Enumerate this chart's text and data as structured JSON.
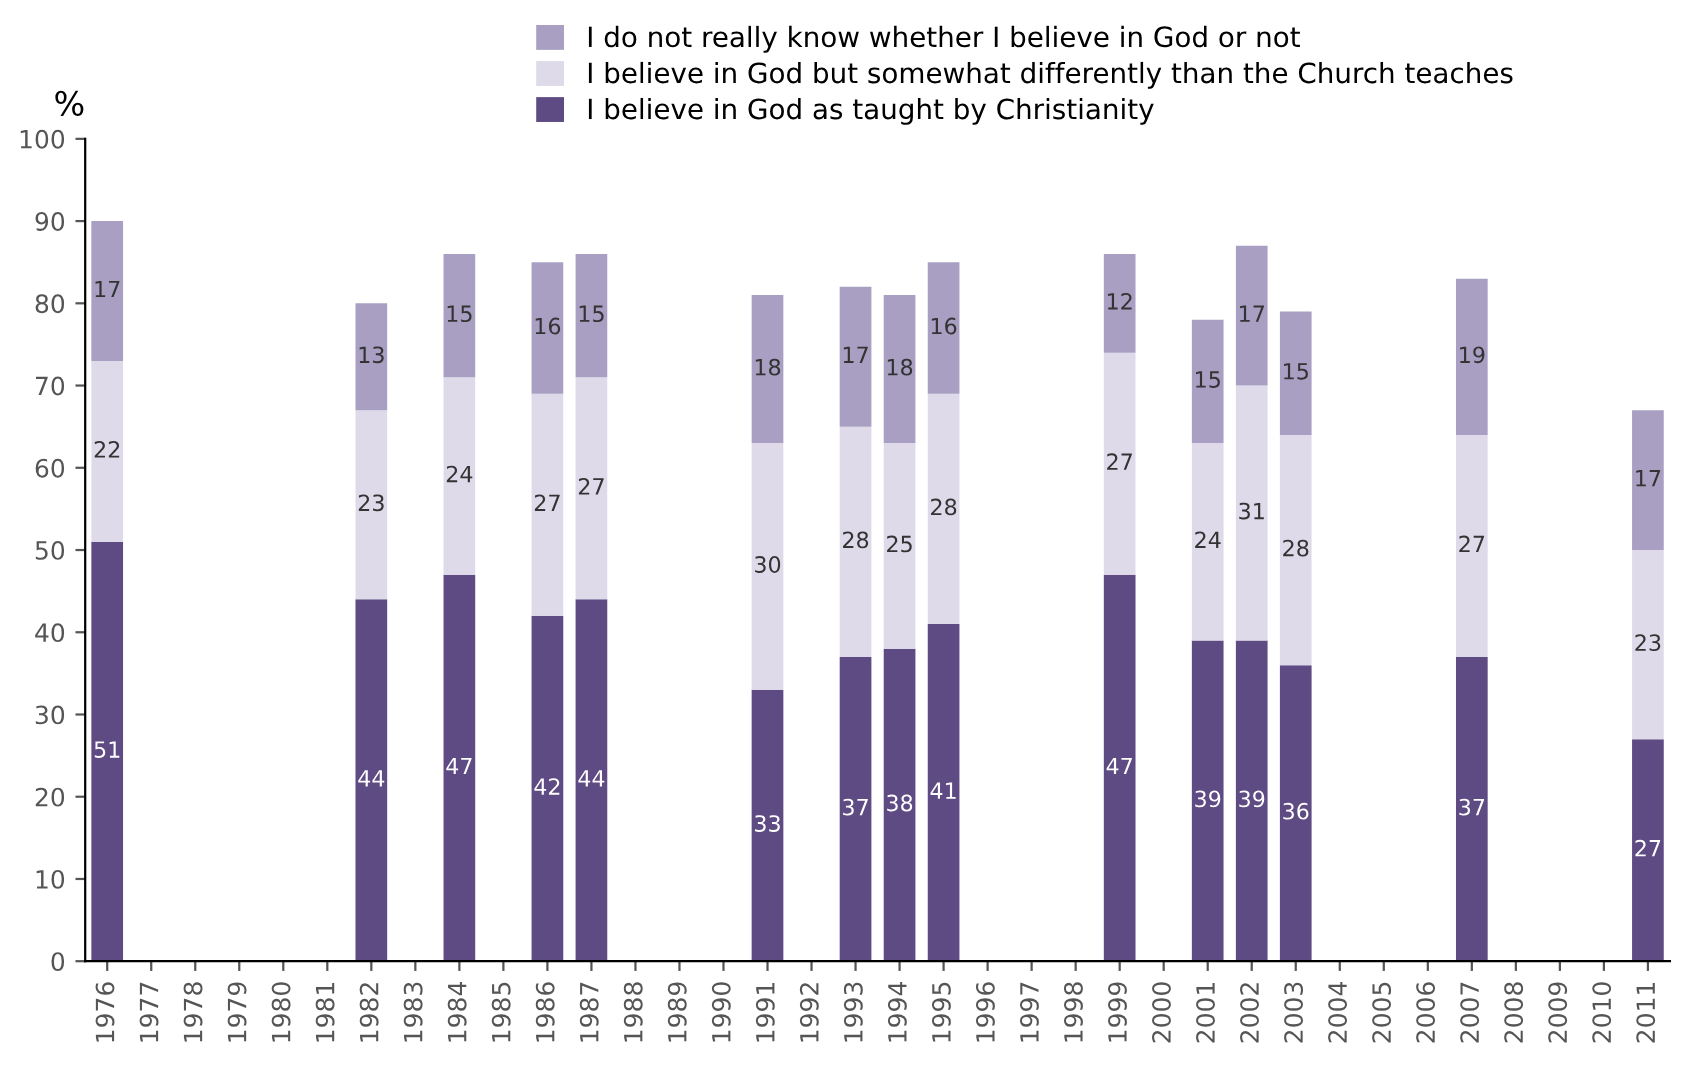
{
  "chart_data": {
    "type": "bar",
    "stacked": true,
    "ylabel": "%",
    "categories": [
      "1976",
      "1977",
      "1978",
      "1979",
      "1980",
      "1981",
      "1982",
      "1983",
      "1984",
      "1985",
      "1986",
      "1987",
      "1988",
      "1989",
      "1990",
      "1991",
      "1992",
      "1993",
      "1994",
      "1995",
      "1996",
      "1997",
      "1998",
      "1999",
      "2000",
      "2001",
      "2002",
      "2003",
      "2004",
      "2005",
      "2006",
      "2007",
      "2008",
      "2009",
      "2010",
      "2011"
    ],
    "series": [
      {
        "name": "I believe in God as taught by Christianity",
        "color": "#5e4b84",
        "values": [
          51,
          null,
          null,
          null,
          null,
          null,
          44,
          null,
          47,
          null,
          42,
          44,
          null,
          null,
          null,
          33,
          null,
          37,
          38,
          41,
          null,
          null,
          null,
          47,
          null,
          39,
          39,
          36,
          null,
          null,
          null,
          37,
          null,
          null,
          null,
          27
        ]
      },
      {
        "name": "I believe in God but somewhat differently than the Church teaches",
        "color": "#dedaea",
        "values": [
          22,
          null,
          null,
          null,
          null,
          null,
          23,
          null,
          24,
          null,
          27,
          27,
          null,
          null,
          null,
          30,
          null,
          28,
          25,
          28,
          null,
          null,
          null,
          27,
          null,
          24,
          31,
          28,
          null,
          null,
          null,
          27,
          null,
          null,
          null,
          23
        ]
      },
      {
        "name": "I do not really know whether I believe in God or not",
        "color": "#a89fc3",
        "values": [
          17,
          null,
          null,
          null,
          null,
          null,
          13,
          null,
          15,
          null,
          16,
          15,
          null,
          null,
          null,
          18,
          null,
          17,
          18,
          16,
          null,
          null,
          null,
          12,
          null,
          15,
          17,
          15,
          null,
          null,
          null,
          19,
          null,
          null,
          null,
          17
        ]
      }
    ],
    "ylim": [
      0,
      100
    ],
    "yticks": [
      0,
      10,
      20,
      30,
      40,
      50,
      60,
      70,
      80,
      90,
      100
    ],
    "data_labels": true,
    "legend": "top",
    "grid": false
  }
}
